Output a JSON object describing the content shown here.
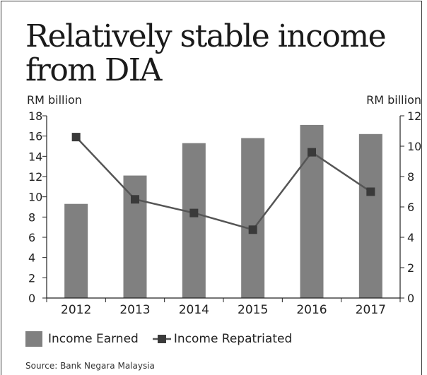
{
  "title": "Relatively stable income\nfrom DIA",
  "source": "Source: Bank Negara Malaysia",
  "colors": {
    "bar": "#808080",
    "line": "#555555",
    "marker": "#3a3a3a",
    "axis": "#222222",
    "text": "#222222"
  },
  "chart_data": {
    "type": "bar",
    "categories": [
      "2012",
      "2013",
      "2014",
      "2015",
      "2016",
      "2017"
    ],
    "series": [
      {
        "name": "Income Earned",
        "type": "bar",
        "axis": "left",
        "values": [
          9.3,
          12.1,
          15.3,
          15.8,
          17.1,
          16.2
        ]
      },
      {
        "name": "Income Repatriated",
        "type": "line",
        "axis": "right",
        "values": [
          10.6,
          6.5,
          5.6,
          4.5,
          9.6,
          7.0
        ]
      }
    ],
    "ylabel_left": "RM billion",
    "ylabel_right": "RM billion",
    "ylim_left": [
      0,
      18
    ],
    "ylim_right": [
      0,
      12
    ],
    "yticks_left": [
      "0",
      "2",
      "4",
      "6",
      "8",
      "10",
      "12",
      "14",
      "16",
      "18"
    ],
    "yticks_right": [
      "0",
      "2",
      "4",
      "6",
      "8",
      "10",
      "12"
    ],
    "grid": false,
    "legend_position": "bottom-left"
  }
}
